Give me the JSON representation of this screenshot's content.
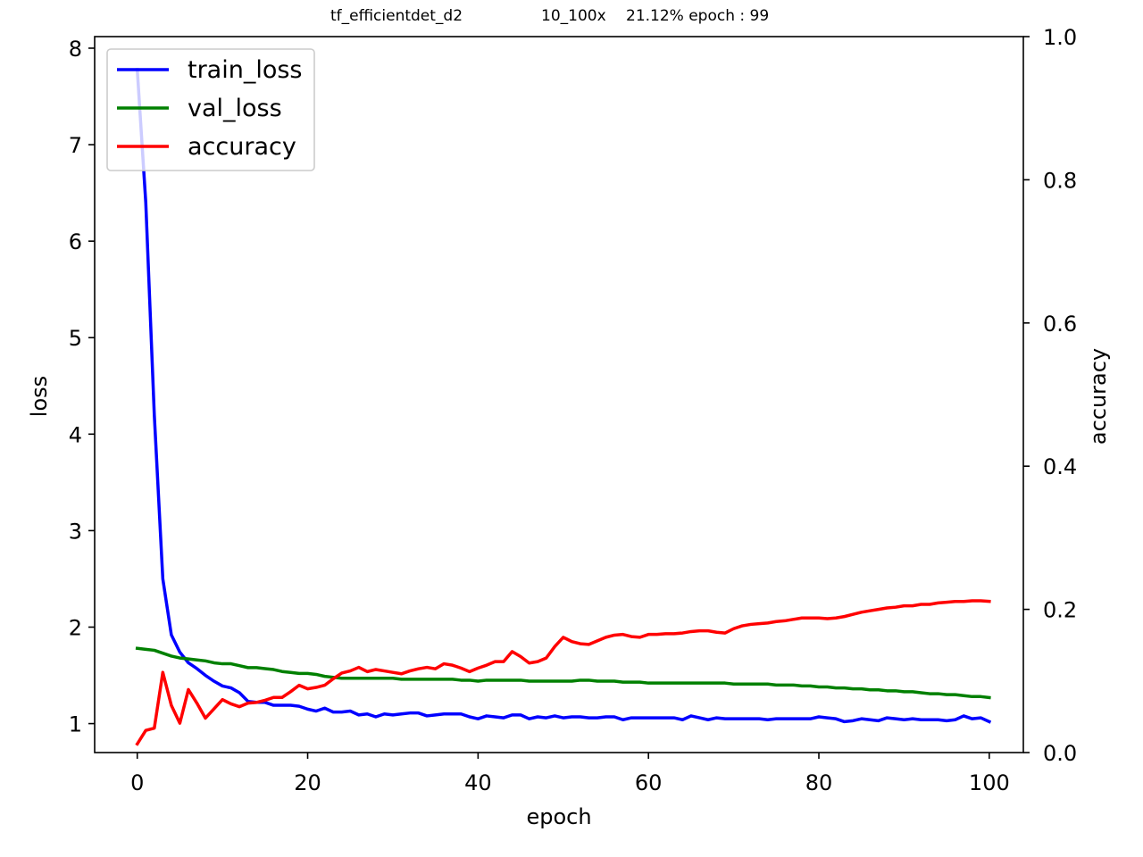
{
  "chart_data": {
    "type": "line",
    "title": "tf_efficientdet_d2 10_100x 21.12% epoch : 99",
    "title_parts": [
      "tf_efficientdet_d2",
      "10_100x",
      "21.12% epoch : 99"
    ],
    "xlabel": "epoch",
    "ylabel": "loss",
    "y2label": "accuracy",
    "xlim": [
      -5,
      104
    ],
    "ylim": [
      0.7,
      8.12
    ],
    "y2lim": [
      0.0,
      1.0
    ],
    "xticks": [
      0,
      20,
      40,
      60,
      80,
      100
    ],
    "yticks": [
      1,
      2,
      3,
      4,
      5,
      6,
      7,
      8
    ],
    "y2ticks": [
      0.0,
      0.2,
      0.4,
      0.6,
      0.8,
      1.0
    ],
    "grid": false,
    "legend_position": "top-left",
    "series": [
      {
        "name": "train_loss",
        "axis": "left",
        "color": "#0000ff",
        "values": [
          7.78,
          6.4,
          4.2,
          2.5,
          1.92,
          1.74,
          1.63,
          1.57,
          1.5,
          1.44,
          1.39,
          1.37,
          1.32,
          1.23,
          1.22,
          1.22,
          1.19,
          1.19,
          1.19,
          1.18,
          1.15,
          1.13,
          1.16,
          1.12,
          1.12,
          1.13,
          1.09,
          1.1,
          1.07,
          1.1,
          1.09,
          1.1,
          1.11,
          1.11,
          1.08,
          1.09,
          1.1,
          1.1,
          1.1,
          1.07,
          1.05,
          1.08,
          1.07,
          1.06,
          1.09,
          1.09,
          1.05,
          1.07,
          1.06,
          1.08,
          1.06,
          1.07,
          1.07,
          1.06,
          1.06,
          1.07,
          1.07,
          1.04,
          1.06,
          1.06,
          1.06,
          1.06,
          1.06,
          1.06,
          1.04,
          1.08,
          1.06,
          1.04,
          1.06,
          1.05,
          1.05,
          1.05,
          1.05,
          1.05,
          1.04,
          1.05,
          1.05,
          1.05,
          1.05,
          1.05,
          1.07,
          1.06,
          1.05,
          1.02,
          1.03,
          1.05,
          1.04,
          1.03,
          1.06,
          1.05,
          1.04,
          1.05,
          1.04,
          1.04,
          1.04,
          1.03,
          1.04,
          1.08,
          1.05,
          1.06,
          1.02
        ]
      },
      {
        "name": "val_loss",
        "axis": "left",
        "color": "#008000",
        "values": [
          1.78,
          1.77,
          1.76,
          1.73,
          1.7,
          1.68,
          1.67,
          1.66,
          1.65,
          1.63,
          1.62,
          1.62,
          1.6,
          1.58,
          1.58,
          1.57,
          1.56,
          1.54,
          1.53,
          1.52,
          1.52,
          1.51,
          1.49,
          1.48,
          1.47,
          1.47,
          1.47,
          1.47,
          1.47,
          1.47,
          1.47,
          1.46,
          1.46,
          1.46,
          1.46,
          1.46,
          1.46,
          1.46,
          1.45,
          1.45,
          1.44,
          1.45,
          1.45,
          1.45,
          1.45,
          1.45,
          1.44,
          1.44,
          1.44,
          1.44,
          1.44,
          1.44,
          1.45,
          1.45,
          1.44,
          1.44,
          1.44,
          1.43,
          1.43,
          1.43,
          1.42,
          1.42,
          1.42,
          1.42,
          1.42,
          1.42,
          1.42,
          1.42,
          1.42,
          1.42,
          1.41,
          1.41,
          1.41,
          1.41,
          1.41,
          1.4,
          1.4,
          1.4,
          1.39,
          1.39,
          1.38,
          1.38,
          1.37,
          1.37,
          1.36,
          1.36,
          1.35,
          1.35,
          1.34,
          1.34,
          1.33,
          1.33,
          1.32,
          1.31,
          1.31,
          1.3,
          1.3,
          1.29,
          1.28,
          1.28,
          1.27
        ]
      },
      {
        "name": "accuracy",
        "axis": "right",
        "color": "#ff0000",
        "values": [
          0.012,
          0.031,
          0.034,
          0.112,
          0.066,
          0.041,
          0.088,
          0.069,
          0.048,
          0.061,
          0.074,
          0.068,
          0.064,
          0.069,
          0.07,
          0.073,
          0.077,
          0.077,
          0.085,
          0.094,
          0.089,
          0.091,
          0.094,
          0.103,
          0.111,
          0.114,
          0.119,
          0.113,
          0.116,
          0.114,
          0.112,
          0.11,
          0.114,
          0.117,
          0.119,
          0.117,
          0.124,
          0.122,
          0.118,
          0.113,
          0.118,
          0.122,
          0.127,
          0.127,
          0.141,
          0.134,
          0.125,
          0.127,
          0.132,
          0.148,
          0.161,
          0.155,
          0.152,
          0.151,
          0.156,
          0.161,
          0.164,
          0.165,
          0.162,
          0.161,
          0.165,
          0.165,
          0.166,
          0.166,
          0.167,
          0.169,
          0.17,
          0.17,
          0.168,
          0.167,
          0.173,
          0.177,
          0.179,
          0.18,
          0.181,
          0.183,
          0.184,
          0.186,
          0.188,
          0.188,
          0.188,
          0.187,
          0.188,
          0.19,
          0.193,
          0.196,
          0.198,
          0.2,
          0.202,
          0.203,
          0.205,
          0.205,
          0.207,
          0.207,
          0.209,
          0.21,
          0.211,
          0.211,
          0.212,
          0.212,
          0.2112
        ]
      }
    ]
  }
}
